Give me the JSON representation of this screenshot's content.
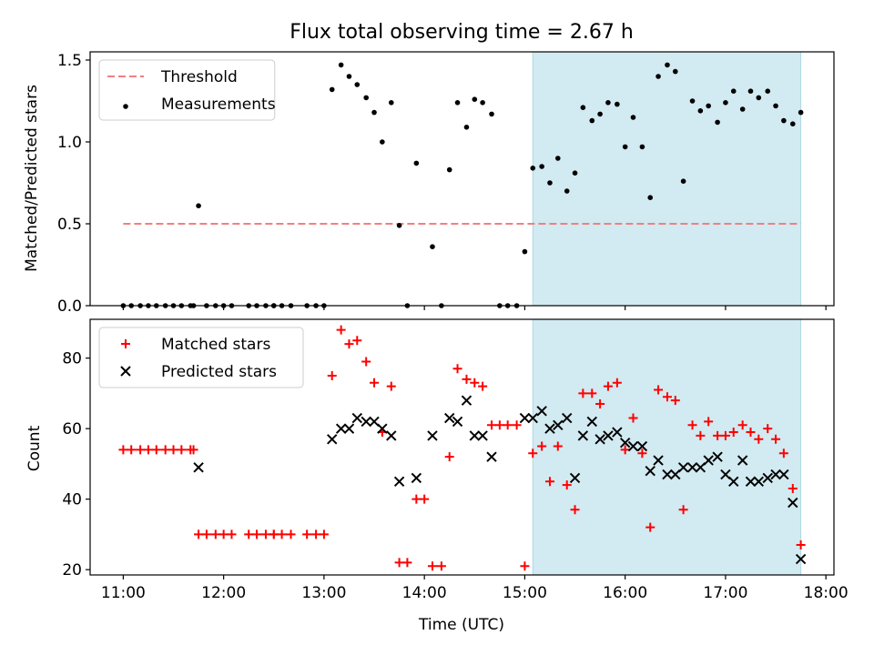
{
  "chart_data": {
    "title": "Flux total observing time = 2.67 h",
    "xlabel": "Time (UTC)",
    "x_unit": "hours UTC",
    "xlim": [
      10.67,
      18.08
    ],
    "x_ticks": [
      11,
      12,
      13,
      14,
      15,
      16,
      17,
      18
    ],
    "x_tick_labels": [
      "11:00",
      "12:00",
      "13:00",
      "14:00",
      "15:00",
      "16:00",
      "17:00",
      "18:00"
    ],
    "highlight_span": [
      15.08,
      17.75
    ],
    "highlight_color": "#ADD8E6",
    "panels": [
      {
        "type": "scatter",
        "ylabel": "Matched/Predicted stars",
        "ylim": [
          0,
          1.55
        ],
        "y_ticks": [
          0.0,
          0.5,
          1.0,
          1.5
        ],
        "y_tick_labels": [
          "0.0",
          "0.5",
          "1.0",
          "1.5"
        ],
        "legend_position": "top-left",
        "threshold": {
          "name": "Threshold",
          "value": 0.5,
          "x_range": [
            11.0,
            17.75
          ],
          "color": "#F08080"
        },
        "series": [
          {
            "name": "Measurements",
            "marker": "dot",
            "color": "#000000",
            "points": [
              [
                11.0,
                0
              ],
              [
                11.08,
                0
              ],
              [
                11.17,
                0
              ],
              [
                11.25,
                0
              ],
              [
                11.33,
                0
              ],
              [
                11.42,
                0
              ],
              [
                11.5,
                0
              ],
              [
                11.58,
                0
              ],
              [
                11.67,
                0
              ],
              [
                11.7,
                0
              ],
              [
                11.75,
                0.61
              ],
              [
                11.83,
                0
              ],
              [
                11.92,
                0
              ],
              [
                12.0,
                0
              ],
              [
                12.08,
                0
              ],
              [
                12.25,
                0
              ],
              [
                12.33,
                0
              ],
              [
                12.42,
                0
              ],
              [
                12.5,
                0
              ],
              [
                12.5,
                0
              ],
              [
                12.58,
                0
              ],
              [
                12.67,
                0
              ],
              [
                12.83,
                0
              ],
              [
                12.92,
                0
              ],
              [
                13.0,
                0
              ],
              [
                13.08,
                1.32
              ],
              [
                13.17,
                1.47
              ],
              [
                13.25,
                1.4
              ],
              [
                13.33,
                1.35
              ],
              [
                13.42,
                1.27
              ],
              [
                13.5,
                1.18
              ],
              [
                13.58,
                1.0
              ],
              [
                13.67,
                1.24
              ],
              [
                13.75,
                0.49
              ],
              [
                13.83,
                0
              ],
              [
                13.92,
                0.87
              ],
              [
                14.08,
                0.36
              ],
              [
                14.17,
                0
              ],
              [
                14.25,
                0.83
              ],
              [
                14.33,
                1.24
              ],
              [
                14.42,
                1.09
              ],
              [
                14.5,
                1.26
              ],
              [
                14.58,
                1.24
              ],
              [
                14.67,
                1.17
              ],
              [
                14.75,
                0
              ],
              [
                14.83,
                0
              ],
              [
                14.92,
                0
              ],
              [
                15.0,
                0.33
              ],
              [
                15.08,
                0.84
              ],
              [
                15.17,
                0.85
              ],
              [
                15.25,
                0.75
              ],
              [
                15.33,
                0.9
              ],
              [
                15.42,
                0.7
              ],
              [
                15.5,
                0.81
              ],
              [
                15.58,
                1.21
              ],
              [
                15.67,
                1.13
              ],
              [
                15.75,
                1.17
              ],
              [
                15.83,
                1.24
              ],
              [
                15.92,
                1.23
              ],
              [
                16.0,
                0.97
              ],
              [
                16.08,
                1.15
              ],
              [
                16.17,
                0.97
              ],
              [
                16.25,
                0.66
              ],
              [
                16.33,
                1.4
              ],
              [
                16.42,
                1.47
              ],
              [
                16.5,
                1.43
              ],
              [
                16.58,
                0.76
              ],
              [
                16.67,
                1.25
              ],
              [
                16.75,
                1.19
              ],
              [
                16.83,
                1.22
              ],
              [
                16.92,
                1.12
              ],
              [
                17.0,
                1.24
              ],
              [
                17.08,
                1.31
              ],
              [
                17.17,
                1.2
              ],
              [
                17.25,
                1.31
              ],
              [
                17.33,
                1.27
              ],
              [
                17.42,
                1.31
              ],
              [
                17.5,
                1.22
              ],
              [
                17.58,
                1.13
              ],
              [
                17.67,
                1.11
              ],
              [
                17.75,
                1.18
              ]
            ]
          }
        ]
      },
      {
        "type": "scatter",
        "ylabel": "Count",
        "ylim": [
          18.5,
          91
        ],
        "y_ticks": [
          20,
          40,
          60,
          80
        ],
        "y_tick_labels": [
          "20",
          "40",
          "60",
          "80"
        ],
        "legend_position": "top-left",
        "series": [
          {
            "name": "Matched stars",
            "marker": "plus",
            "color": "#FF0000",
            "points": [
              [
                11.0,
                54
              ],
              [
                11.08,
                54
              ],
              [
                11.17,
                54
              ],
              [
                11.25,
                54
              ],
              [
                11.33,
                54
              ],
              [
                11.42,
                54
              ],
              [
                11.5,
                54
              ],
              [
                11.58,
                54
              ],
              [
                11.67,
                54
              ],
              [
                11.7,
                54
              ],
              [
                11.75,
                30
              ],
              [
                11.83,
                30
              ],
              [
                11.92,
                30
              ],
              [
                12.0,
                30
              ],
              [
                12.08,
                30
              ],
              [
                12.25,
                30
              ],
              [
                12.33,
                30
              ],
              [
                12.42,
                30
              ],
              [
                12.5,
                30
              ],
              [
                12.5,
                30
              ],
              [
                12.58,
                30
              ],
              [
                12.67,
                30
              ],
              [
                12.83,
                30
              ],
              [
                12.92,
                30
              ],
              [
                13.0,
                30
              ],
              [
                13.08,
                75
              ],
              [
                13.17,
                88
              ],
              [
                13.25,
                84
              ],
              [
                13.33,
                85
              ],
              [
                13.42,
                79
              ],
              [
                13.5,
                73
              ],
              [
                13.58,
                59
              ],
              [
                13.67,
                72
              ],
              [
                13.75,
                22
              ],
              [
                13.83,
                22
              ],
              [
                13.92,
                40
              ],
              [
                14.0,
                40
              ],
              [
                14.08,
                21
              ],
              [
                14.17,
                21
              ],
              [
                14.25,
                52
              ],
              [
                14.33,
                77
              ],
              [
                14.42,
                74
              ],
              [
                14.5,
                73
              ],
              [
                14.58,
                72
              ],
              [
                14.67,
                61
              ],
              [
                14.75,
                61
              ],
              [
                14.83,
                61
              ],
              [
                14.92,
                61
              ],
              [
                15.0,
                21
              ],
              [
                15.08,
                53
              ],
              [
                15.17,
                55
              ],
              [
                15.25,
                45
              ],
              [
                15.33,
                55
              ],
              [
                15.42,
                44
              ],
              [
                15.5,
                37
              ],
              [
                15.58,
                70
              ],
              [
                15.67,
                70
              ],
              [
                15.75,
                67
              ],
              [
                15.83,
                72
              ],
              [
                15.92,
                73
              ],
              [
                16.0,
                54
              ],
              [
                16.08,
                63
              ],
              [
                16.17,
                53
              ],
              [
                16.25,
                32
              ],
              [
                16.33,
                71
              ],
              [
                16.42,
                69
              ],
              [
                16.5,
                68
              ],
              [
                16.58,
                37
              ],
              [
                16.67,
                61
              ],
              [
                16.75,
                58
              ],
              [
                16.83,
                62
              ],
              [
                16.92,
                58
              ],
              [
                17.0,
                58
              ],
              [
                17.08,
                59
              ],
              [
                17.17,
                61
              ],
              [
                17.25,
                59
              ],
              [
                17.33,
                57
              ],
              [
                17.42,
                60
              ],
              [
                17.5,
                57
              ],
              [
                17.58,
                53
              ],
              [
                17.67,
                43
              ],
              [
                17.75,
                27
              ]
            ]
          },
          {
            "name": "Predicted stars",
            "marker": "x",
            "color": "#000000",
            "points": [
              [
                11.75,
                49
              ],
              [
                13.08,
                57
              ],
              [
                13.17,
                60
              ],
              [
                13.25,
                60
              ],
              [
                13.33,
                63
              ],
              [
                13.42,
                62
              ],
              [
                13.5,
                62
              ],
              [
                13.58,
                60
              ],
              [
                13.67,
                58
              ],
              [
                13.75,
                45
              ],
              [
                13.92,
                46
              ],
              [
                14.08,
                58
              ],
              [
                14.25,
                63
              ],
              [
                14.33,
                62
              ],
              [
                14.42,
                68
              ],
              [
                14.5,
                58
              ],
              [
                14.58,
                58
              ],
              [
                14.67,
                52
              ],
              [
                15.0,
                63
              ],
              [
                15.08,
                63
              ],
              [
                15.17,
                65
              ],
              [
                15.25,
                60
              ],
              [
                15.33,
                61
              ],
              [
                15.42,
                63
              ],
              [
                15.5,
                46
              ],
              [
                15.58,
                58
              ],
              [
                15.67,
                62
              ],
              [
                15.75,
                57
              ],
              [
                15.83,
                58
              ],
              [
                15.92,
                59
              ],
              [
                16.0,
                56
              ],
              [
                16.08,
                55
              ],
              [
                16.17,
                55
              ],
              [
                16.25,
                48
              ],
              [
                16.33,
                51
              ],
              [
                16.42,
                47
              ],
              [
                16.5,
                47
              ],
              [
                16.58,
                49
              ],
              [
                16.67,
                49
              ],
              [
                16.75,
                49
              ],
              [
                16.83,
                51
              ],
              [
                16.92,
                52
              ],
              [
                17.0,
                47
              ],
              [
                17.08,
                45
              ],
              [
                17.17,
                51
              ],
              [
                17.25,
                45
              ],
              [
                17.33,
                45
              ],
              [
                17.42,
                46
              ],
              [
                17.5,
                47
              ],
              [
                17.58,
                47
              ],
              [
                17.67,
                39
              ],
              [
                17.75,
                23
              ]
            ]
          }
        ]
      }
    ]
  }
}
